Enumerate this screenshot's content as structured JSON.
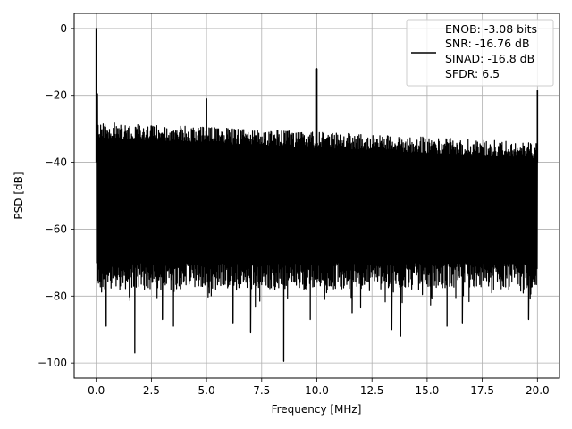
{
  "chart_data": {
    "type": "line",
    "title": "",
    "xlabel": "Frequency [MHz]",
    "ylabel": "PSD [dB]",
    "xlim": [
      -1.0,
      21.0
    ],
    "ylim": [
      -104.5,
      4.5
    ],
    "xticks": [
      0.0,
      2.5,
      5.0,
      7.5,
      10.0,
      12.5,
      15.0,
      17.5,
      20.0
    ],
    "xtick_labels": [
      "0.0",
      "2.5",
      "5.0",
      "7.5",
      "10.0",
      "12.5",
      "15.0",
      "17.5",
      "20.0"
    ],
    "yticks": [
      0,
      -20,
      -40,
      -60,
      -80,
      -100
    ],
    "ytick_labels": [
      "0",
      "−20",
      "−40",
      "−60",
      "−80",
      "−100"
    ],
    "grid": true,
    "legend_position": "top-right",
    "series": [
      {
        "name": "ENOB: -3.08 bits\nSNR: -16.76 dB\nSINAD: -16.8 dB\nSFDR: 6.5",
        "color": "#000000",
        "noise_band": {
          "x_range": [
            0.0,
            20.0
          ],
          "upper_start": -28,
          "upper_end": -34,
          "lower_typical": -74
        },
        "peaks": [
          {
            "x": 0.0,
            "y": 0.0
          },
          {
            "x": 0.05,
            "y": -19.5
          },
          {
            "x": 5.0,
            "y": -21.0
          },
          {
            "x": 10.0,
            "y": -12.0
          },
          {
            "x": 20.0,
            "y": -18.5
          }
        ],
        "dips": [
          {
            "x": 0.45,
            "y": -89.0
          },
          {
            "x": 1.75,
            "y": -97.0
          },
          {
            "x": 3.0,
            "y": -87.0
          },
          {
            "x": 3.5,
            "y": -89.0
          },
          {
            "x": 6.2,
            "y": -88.0
          },
          {
            "x": 7.0,
            "y": -91.0
          },
          {
            "x": 8.5,
            "y": -99.5
          },
          {
            "x": 9.7,
            "y": -87.0
          },
          {
            "x": 11.6,
            "y": -85.0
          },
          {
            "x": 13.4,
            "y": -90.0
          },
          {
            "x": 13.8,
            "y": -92.0
          },
          {
            "x": 15.9,
            "y": -89.0
          },
          {
            "x": 16.6,
            "y": -88.0
          },
          {
            "x": 19.6,
            "y": -87.0
          }
        ]
      }
    ]
  },
  "legend": {
    "lines": [
      "ENOB: -3.08 bits",
      "SNR: -16.76 dB",
      "SINAD: -16.8 dB",
      "SFDR: 6.5"
    ]
  }
}
